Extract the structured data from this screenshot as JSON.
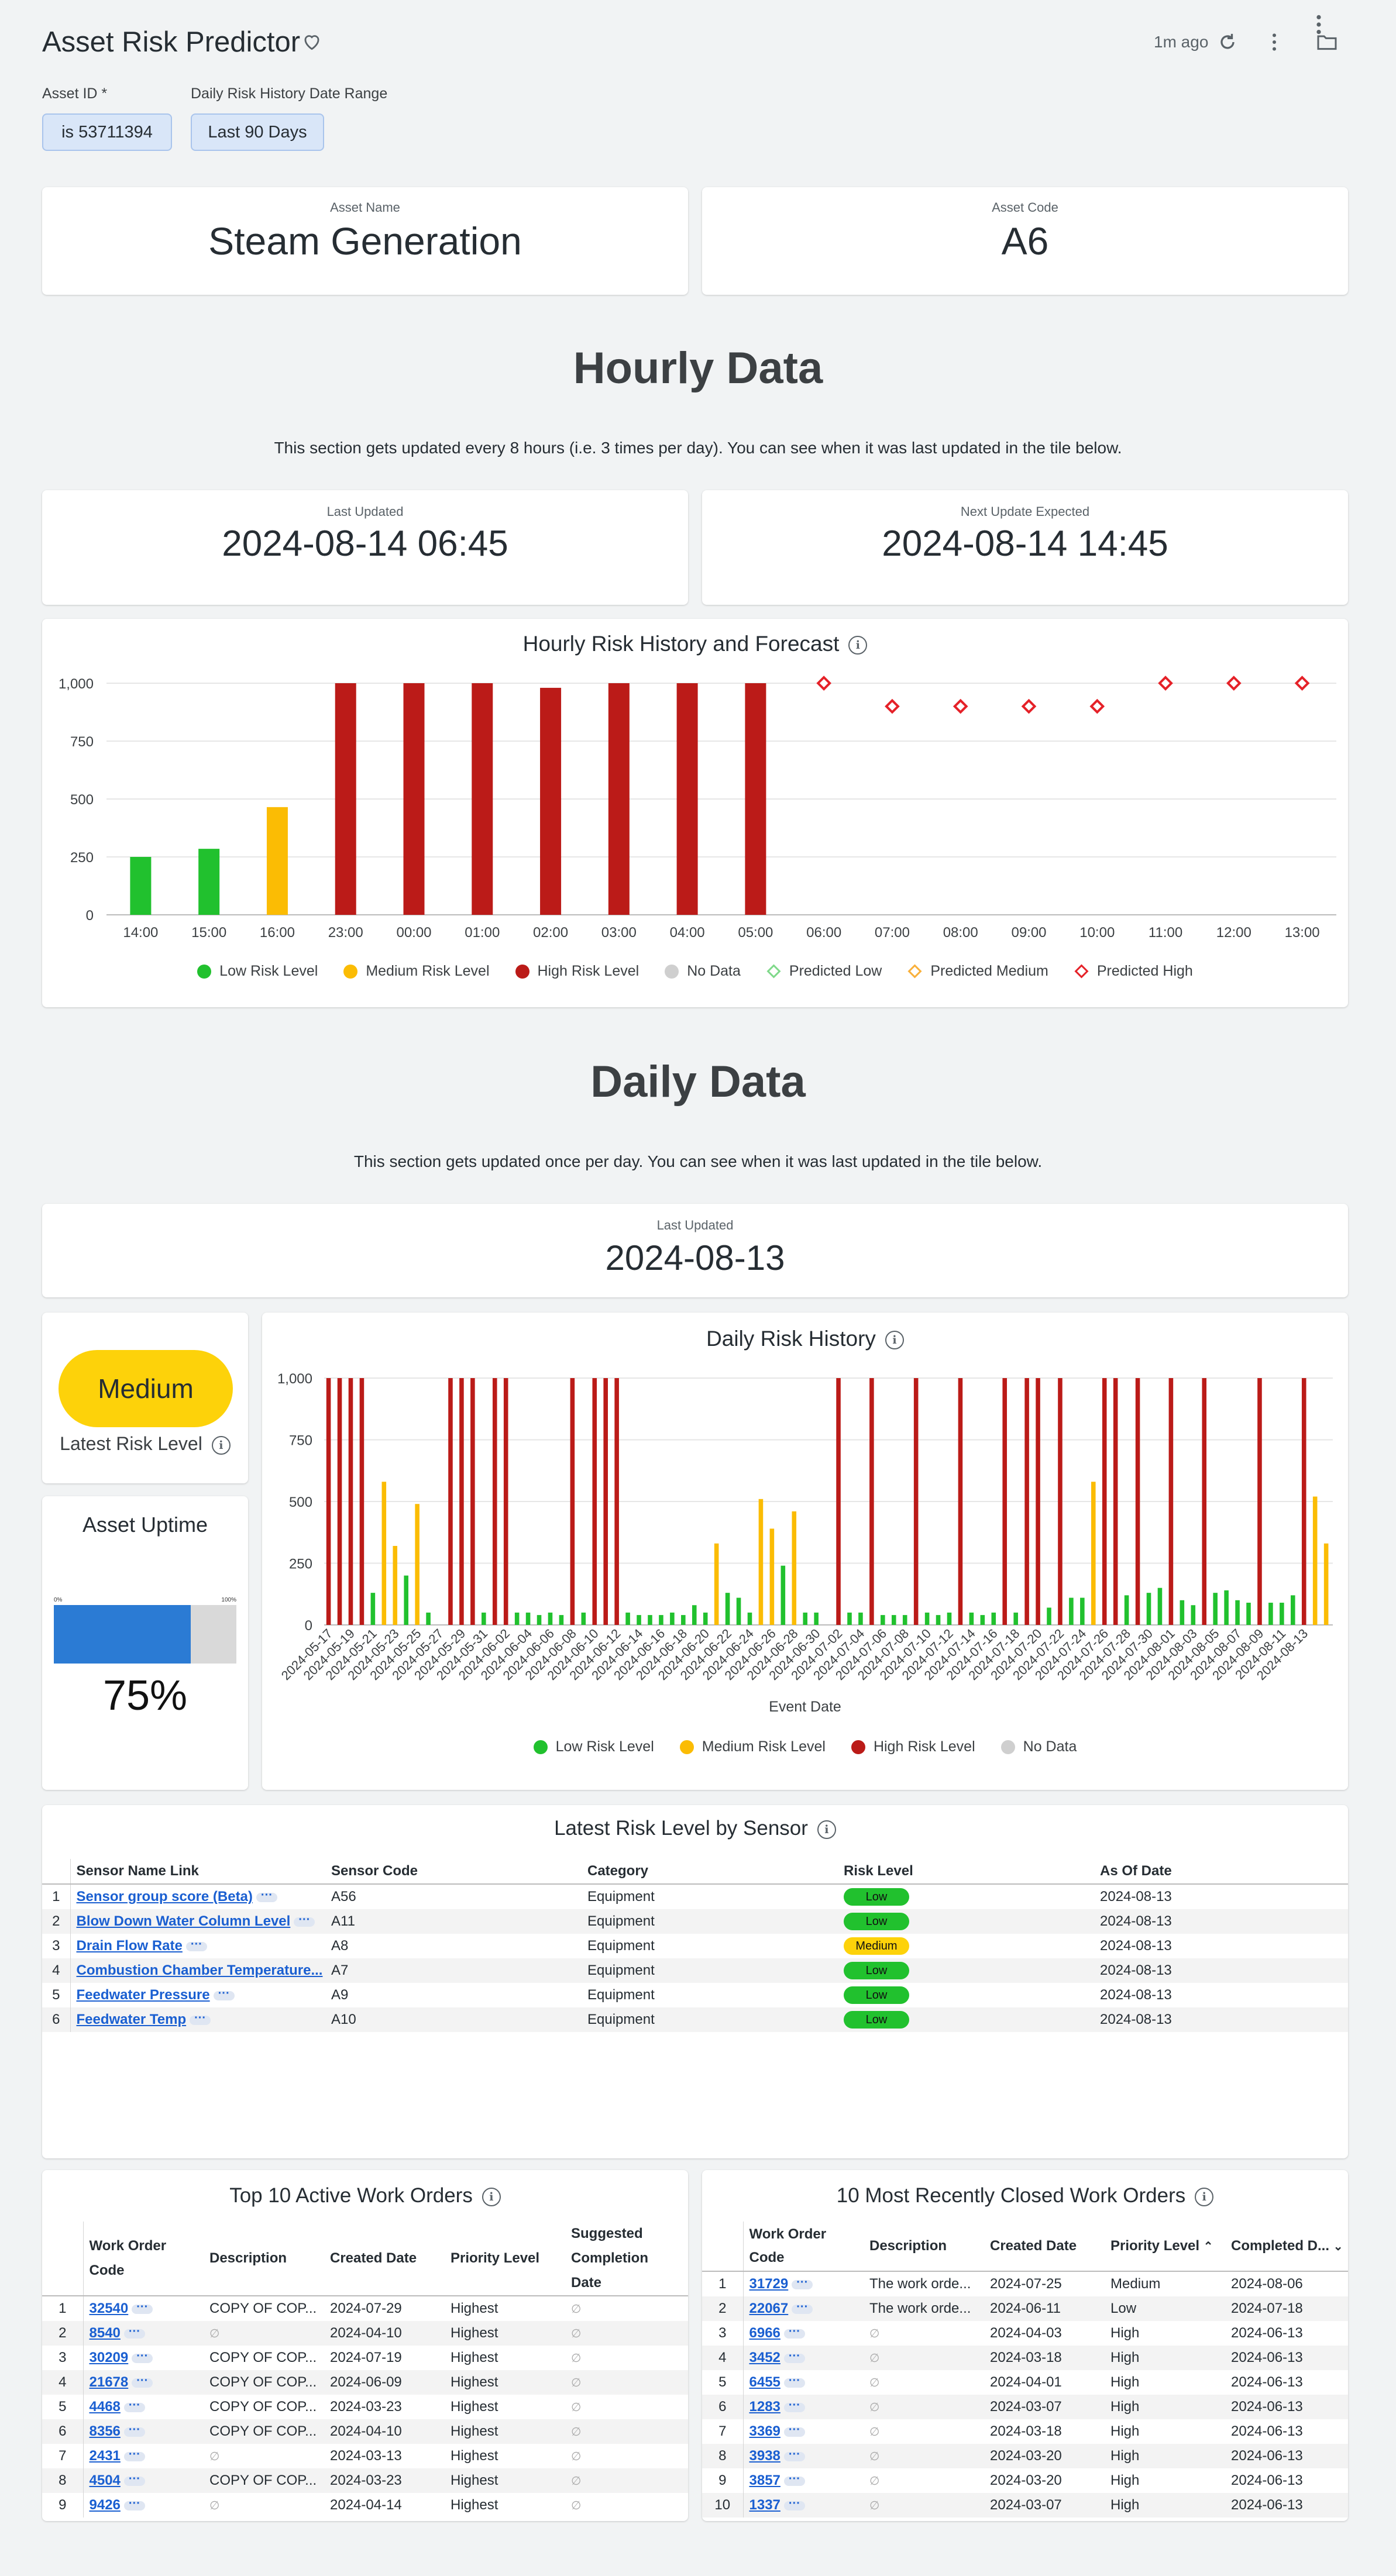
{
  "header": {
    "title": "Asset Risk Predictor",
    "updated_ago": "1m ago",
    "filters": [
      {
        "label": "Asset ID *",
        "value": "is 53711394"
      },
      {
        "label": "Daily Risk History Date Range",
        "value": "Last 90 Days"
      }
    ]
  },
  "asset": {
    "name_label": "Asset Name",
    "name": "Steam Generation",
    "code_label": "Asset Code",
    "code": "A6"
  },
  "hourly": {
    "title": "Hourly Data",
    "description": "This section gets updated every 8 hours (i.e. 3 times per day). You can see when it was last updated in the tile below.",
    "last_updated_label": "Last Updated",
    "last_updated": "2024-08-14 06:45",
    "next_update_label": "Next Update Expected",
    "next_update": "2024-08-14 14:45"
  },
  "daily": {
    "title": "Daily Data",
    "description": "This section gets updated once per day. You can see when it was last updated in the tile below.",
    "last_updated_label": "Last Updated",
    "last_updated": "2024-08-13"
  },
  "latest_risk": {
    "value": "Medium",
    "label": "Latest Risk Level",
    "color": "#fdd20a"
  },
  "uptime": {
    "title": "Asset Uptime",
    "value_text": "75%",
    "fraction": 0.75,
    "min_label": "0%",
    "max_label": "100%"
  },
  "colors": {
    "low": "#21c12e",
    "medium": "#fbbc04",
    "high": "#bb1b18",
    "nodata": "#cfcfcf",
    "pred_low": "#7fd98a",
    "pred_medium": "#f9b03a",
    "pred_high": "#e52128"
  },
  "chart_data": [
    {
      "type": "bar",
      "title": "Hourly Risk History and Forecast",
      "ylim": [
        0,
        1000
      ],
      "yticks": [
        "0",
        "250",
        "500",
        "750",
        "1,000"
      ],
      "categories": [
        "14:00",
        "15:00",
        "16:00",
        "23:00",
        "00:00",
        "01:00",
        "02:00",
        "03:00",
        "04:00",
        "05:00",
        "06:00",
        "07:00",
        "08:00",
        "09:00",
        "10:00",
        "11:00",
        "12:00",
        "13:00"
      ],
      "bars": [
        {
          "x": "14:00",
          "value": 250,
          "level": "low"
        },
        {
          "x": "15:00",
          "value": 285,
          "level": "low"
        },
        {
          "x": "16:00",
          "value": 465,
          "level": "medium"
        },
        {
          "x": "23:00",
          "value": 1000,
          "level": "high"
        },
        {
          "x": "00:00",
          "value": 1000,
          "level": "high"
        },
        {
          "x": "01:00",
          "value": 1000,
          "level": "high"
        },
        {
          "x": "02:00",
          "value": 980,
          "level": "high"
        },
        {
          "x": "03:00",
          "value": 1000,
          "level": "high"
        },
        {
          "x": "04:00",
          "value": 1000,
          "level": "high"
        },
        {
          "x": "05:00",
          "value": 1000,
          "level": "high"
        }
      ],
      "predictions": [
        {
          "x": "06:00",
          "value": 1000,
          "level": "pred_high"
        },
        {
          "x": "07:00",
          "value": 900,
          "level": "pred_high"
        },
        {
          "x": "08:00",
          "value": 900,
          "level": "pred_high"
        },
        {
          "x": "09:00",
          "value": 900,
          "level": "pred_high"
        },
        {
          "x": "10:00",
          "value": 900,
          "level": "pred_high"
        },
        {
          "x": "11:00",
          "value": 1000,
          "level": "pred_high"
        },
        {
          "x": "12:00",
          "value": 1000,
          "level": "pred_high"
        },
        {
          "x": "13:00",
          "value": 1000,
          "level": "pred_high"
        }
      ],
      "legend": [
        {
          "name": "Low Risk Level",
          "key": "low",
          "shape": "dot"
        },
        {
          "name": "Medium Risk Level",
          "key": "medium",
          "shape": "dot"
        },
        {
          "name": "High Risk Level",
          "key": "high",
          "shape": "dot"
        },
        {
          "name": "No Data",
          "key": "nodata",
          "shape": "dot"
        },
        {
          "name": "Predicted Low",
          "key": "pred_low",
          "shape": "diamond"
        },
        {
          "name": "Predicted Medium",
          "key": "pred_medium",
          "shape": "diamond"
        },
        {
          "name": "Predicted High",
          "key": "pred_high",
          "shape": "diamond"
        }
      ]
    },
    {
      "type": "bar",
      "title": "Daily Risk History",
      "xlabel": "Event Date",
      "ylim": [
        0,
        1000
      ],
      "yticks": [
        "0",
        "250",
        "500",
        "750",
        "1,000"
      ],
      "start_date": "2024-05-17",
      "x_tick_labels": [
        "2024-05-17",
        "2024-05-19",
        "2024-05-21",
        "2024-05-23",
        "2024-05-25",
        "2024-05-27",
        "2024-05-29",
        "2024-05-31",
        "2024-06-02",
        "2024-06-04",
        "2024-06-06",
        "2024-06-08",
        "2024-06-10",
        "2024-06-12",
        "2024-06-14",
        "2024-06-16",
        "2024-06-18",
        "2024-06-20",
        "2024-06-22",
        "2024-06-24",
        "2024-06-26",
        "2024-06-28",
        "2024-06-30",
        "2024-07-02",
        "2024-07-04",
        "2024-07-06",
        "2024-07-08",
        "2024-07-10",
        "2024-07-12",
        "2024-07-14",
        "2024-07-16",
        "2024-07-18",
        "2024-07-20",
        "2024-07-22",
        "2024-07-24",
        "2024-07-26",
        "2024-07-28",
        "2024-07-30",
        "2024-08-01",
        "2024-08-03",
        "2024-08-05",
        "2024-08-07",
        "2024-08-09",
        "2024-08-11",
        "2024-08-13"
      ],
      "values": [
        1000,
        1000,
        1000,
        1000,
        130,
        580,
        320,
        200,
        490,
        50,
        0,
        1000,
        1000,
        1000,
        50,
        1000,
        1000,
        50,
        50,
        40,
        50,
        40,
        1000,
        50,
        1000,
        1000,
        1000,
        50,
        40,
        40,
        40,
        50,
        40,
        80,
        50,
        330,
        130,
        110,
        50,
        510,
        390,
        240,
        460,
        50,
        50,
        0,
        1000,
        50,
        50,
        1000,
        40,
        40,
        40,
        1000,
        50,
        40,
        50,
        1000,
        50,
        40,
        50,
        1000,
        50,
        1000,
        1000,
        70,
        1000,
        110,
        110,
        580,
        1000,
        1000,
        120,
        1000,
        130,
        150,
        1000,
        100,
        80,
        1000,
        130,
        140,
        100,
        90,
        1000,
        90,
        90,
        120,
        1000,
        520,
        330
      ],
      "levels": [
        "H",
        "H",
        "H",
        "H",
        "L",
        "M",
        "M",
        "L",
        "M",
        "L",
        "N",
        "H",
        "H",
        "H",
        "L",
        "H",
        "H",
        "L",
        "L",
        "L",
        "L",
        "L",
        "H",
        "L",
        "H",
        "H",
        "H",
        "L",
        "L",
        "L",
        "L",
        "L",
        "L",
        "L",
        "L",
        "M",
        "L",
        "L",
        "L",
        "M",
        "M",
        "L",
        "M",
        "L",
        "L",
        "N",
        "H",
        "L",
        "L",
        "H",
        "L",
        "L",
        "L",
        "H",
        "L",
        "L",
        "L",
        "H",
        "L",
        "L",
        "L",
        "H",
        "L",
        "H",
        "H",
        "L",
        "H",
        "L",
        "L",
        "M",
        "H",
        "H",
        "L",
        "H",
        "L",
        "L",
        "H",
        "L",
        "L",
        "H",
        "L",
        "L",
        "L",
        "L",
        "H",
        "L",
        "L",
        "L",
        "H",
        "M",
        "M"
      ],
      "legend": [
        {
          "name": "Low Risk Level",
          "key": "low"
        },
        {
          "name": "Medium Risk Level",
          "key": "medium"
        },
        {
          "name": "High Risk Level",
          "key": "high"
        },
        {
          "name": "No Data",
          "key": "nodata"
        }
      ]
    }
  ],
  "sensors": {
    "title": "Latest Risk Level by Sensor",
    "columns": [
      "Sensor Name Link",
      "Sensor Code",
      "Category",
      "Risk Level",
      "As Of Date"
    ],
    "rows": [
      {
        "n": "1",
        "name": "Sensor group score (Beta)",
        "code": "A56",
        "category": "Equipment",
        "risk": "Low",
        "date": "2024-08-13"
      },
      {
        "n": "2",
        "name": "Blow Down Water Column Level",
        "code": "A11",
        "category": "Equipment",
        "risk": "Low",
        "date": "2024-08-13"
      },
      {
        "n": "3",
        "name": "Drain Flow Rate",
        "code": "A8",
        "category": "Equipment",
        "risk": "Medium",
        "date": "2024-08-13"
      },
      {
        "n": "4",
        "name": "Combustion Chamber Temperature...",
        "code": "A7",
        "category": "Equipment",
        "risk": "Low",
        "date": "2024-08-13"
      },
      {
        "n": "5",
        "name": "Feedwater Pressure",
        "code": "A9",
        "category": "Equipment",
        "risk": "Low",
        "date": "2024-08-13"
      },
      {
        "n": "6",
        "name": "Feedwater Temp",
        "code": "A10",
        "category": "Equipment",
        "risk": "Low",
        "date": "2024-08-13"
      }
    ]
  },
  "active_orders": {
    "title": "Top 10 Active Work Orders",
    "columns": [
      "Work Order Code",
      "Description",
      "Created Date",
      "Priority Level",
      "Suggested Completion Date"
    ],
    "rows": [
      {
        "n": "1",
        "code": "32540",
        "desc": "COPY OF COP...",
        "created": "2024-07-29",
        "priority": "Highest",
        "suggested": "∅"
      },
      {
        "n": "2",
        "code": "8540",
        "desc": "∅",
        "created": "2024-04-10",
        "priority": "Highest",
        "suggested": "∅"
      },
      {
        "n": "3",
        "code": "30209",
        "desc": "COPY OF COP...",
        "created": "2024-07-19",
        "priority": "Highest",
        "suggested": "∅"
      },
      {
        "n": "4",
        "code": "21678",
        "desc": "COPY OF COP...",
        "created": "2024-06-09",
        "priority": "Highest",
        "suggested": "∅"
      },
      {
        "n": "5",
        "code": "4468",
        "desc": "COPY OF COP...",
        "created": "2024-03-23",
        "priority": "Highest",
        "suggested": "∅"
      },
      {
        "n": "6",
        "code": "8356",
        "desc": "COPY OF COP...",
        "created": "2024-04-10",
        "priority": "Highest",
        "suggested": "∅"
      },
      {
        "n": "7",
        "code": "2431",
        "desc": "∅",
        "created": "2024-03-13",
        "priority": "Highest",
        "suggested": "∅"
      },
      {
        "n": "8",
        "code": "4504",
        "desc": "COPY OF COP...",
        "created": "2024-03-23",
        "priority": "Highest",
        "suggested": "∅"
      },
      {
        "n": "9",
        "code": "9426",
        "desc": "∅",
        "created": "2024-04-14",
        "priority": "Highest",
        "suggested": "∅"
      }
    ]
  },
  "closed_orders": {
    "title": "10 Most Recently Closed Work Orders",
    "columns": [
      "Work Order Code",
      "Description",
      "Created Date",
      "Priority Level",
      "Completed D..."
    ],
    "rows": [
      {
        "n": "1",
        "code": "31729",
        "desc": "The work orde...",
        "created": "2024-07-25",
        "priority": "Medium",
        "completed": "2024-08-06"
      },
      {
        "n": "2",
        "code": "22067",
        "desc": "The work orde...",
        "created": "2024-06-11",
        "priority": "Low",
        "completed": "2024-07-18"
      },
      {
        "n": "3",
        "code": "6966",
        "desc": "∅",
        "created": "2024-04-03",
        "priority": "High",
        "completed": "2024-06-13"
      },
      {
        "n": "4",
        "code": "3452",
        "desc": "∅",
        "created": "2024-03-18",
        "priority": "High",
        "completed": "2024-06-13"
      },
      {
        "n": "5",
        "code": "6455",
        "desc": "∅",
        "created": "2024-04-01",
        "priority": "High",
        "completed": "2024-06-13"
      },
      {
        "n": "6",
        "code": "1283",
        "desc": "∅",
        "created": "2024-03-07",
        "priority": "High",
        "completed": "2024-06-13"
      },
      {
        "n": "7",
        "code": "3369",
        "desc": "∅",
        "created": "2024-03-18",
        "priority": "High",
        "completed": "2024-06-13"
      },
      {
        "n": "8",
        "code": "3938",
        "desc": "∅",
        "created": "2024-03-20",
        "priority": "High",
        "completed": "2024-06-13"
      },
      {
        "n": "9",
        "code": "3857",
        "desc": "∅",
        "created": "2024-03-20",
        "priority": "High",
        "completed": "2024-06-13"
      },
      {
        "n": "10",
        "code": "1337",
        "desc": "∅",
        "created": "2024-03-07",
        "priority": "High",
        "completed": "2024-06-13"
      }
    ]
  }
}
